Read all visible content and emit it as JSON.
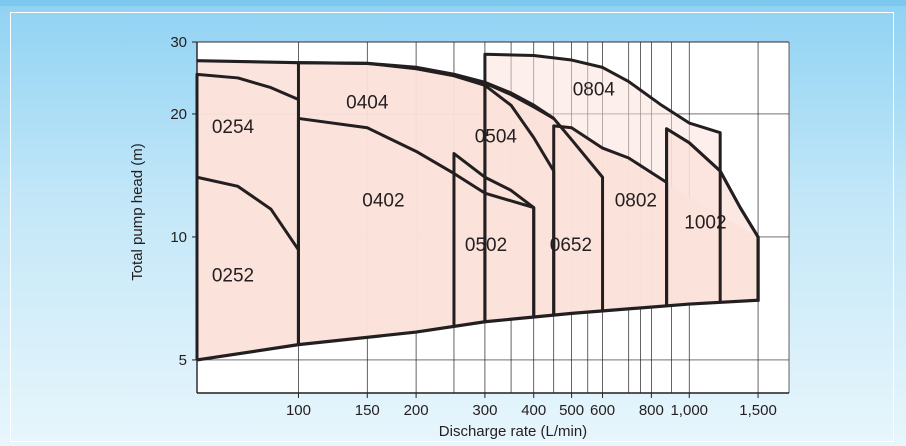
{
  "chart_data": {
    "type": "area",
    "title": "",
    "xlabel": "Discharge rate (L/min)",
    "ylabel": "Total pump head (m)",
    "x_scale": "log",
    "xlim": [
      55,
      1800
    ],
    "ylim": [
      4.15,
      30
    ],
    "grid": true,
    "x_ticks": [
      {
        "value": 100,
        "label": "100"
      },
      {
        "value": 150,
        "label": "150"
      },
      {
        "value": 200,
        "label": "200"
      },
      {
        "value": 300,
        "label": "300"
      },
      {
        "value": 400,
        "label": "400"
      },
      {
        "value": 500,
        "label": "500"
      },
      {
        "value": 600,
        "label": "600"
      },
      {
        "value": 800,
        "label": "800"
      },
      {
        "value": 1000,
        "label": "1,000"
      },
      {
        "value": 1500,
        "label": "1,500"
      }
    ],
    "x_minor": [
      250,
      350,
      450,
      550,
      700,
      750,
      900
    ],
    "y_ticks": [
      {
        "value": 5,
        "label": "5"
      },
      {
        "value": 10,
        "label": "10"
      },
      {
        "value": 20,
        "label": "20"
      },
      {
        "value": 30,
        "label": "30"
      }
    ],
    "y_grid_extra": [
      4.15
    ],
    "fill_color": "#fbe1da",
    "line_color": "#231f20",
    "envelope": {
      "upper": [
        [
          55,
          27
        ],
        [
          100,
          26.7
        ],
        [
          150,
          26.6
        ],
        [
          200,
          26
        ],
        [
          250,
          25
        ],
        [
          300,
          23.9
        ],
        [
          350,
          22.5
        ],
        [
          400,
          21
        ],
        [
          450,
          19.5
        ]
      ],
      "lower": [
        [
          55,
          5
        ],
        [
          100,
          5.45
        ],
        [
          200,
          5.85
        ],
        [
          300,
          6.2
        ],
        [
          500,
          6.5
        ],
        [
          1000,
          6.85
        ],
        [
          1500,
          7
        ]
      ]
    },
    "series": [
      {
        "name": "0252",
        "label_pos": [
          68,
          8
        ],
        "points": [
          [
            55,
            14
          ],
          [
            70,
            13.3
          ],
          [
            85,
            11.7
          ],
          [
            100,
            9.3
          ]
        ]
      },
      {
        "name": "0254",
        "label_pos": [
          68,
          18.5
        ],
        "points": [
          [
            55,
            25
          ],
          [
            70,
            24.5
          ],
          [
            85,
            23.2
          ],
          [
            100,
            21.7
          ]
        ]
      },
      {
        "name": "0402",
        "label_pos": [
          165,
          12.2
        ],
        "points": [
          [
            100,
            19.5
          ],
          [
            150,
            18.5
          ],
          [
            200,
            16.2
          ],
          [
            250,
            14.3
          ],
          [
            300,
            12.8
          ],
          [
            400,
            11.8
          ]
        ]
      },
      {
        "name": "0404",
        "label_pos": [
          150,
          21.2
        ],
        "points": [
          [
            100,
            26.7
          ],
          [
            150,
            26.6
          ],
          [
            200,
            25.8
          ],
          [
            250,
            24.8
          ],
          [
            300,
            23.5
          ],
          [
            350,
            21
          ],
          [
            400,
            17.5
          ],
          [
            450,
            14.5
          ]
        ]
      },
      {
        "name": "0502",
        "label_pos": [
          302,
          9.5
        ],
        "points": [
          [
            250,
            16
          ],
          [
            300,
            14
          ],
          [
            350,
            13
          ],
          [
            400,
            11.8
          ]
        ]
      },
      {
        "name": "0504",
        "label_pos": [
          320,
          17.5
        ],
        "points": [
          [
            300,
            23.8
          ],
          [
            350,
            22.3
          ],
          [
            400,
            20.8
          ],
          [
            450,
            19.5
          ],
          [
            500,
            17.3
          ],
          [
            600,
            14
          ]
        ]
      },
      {
        "name": "0652",
        "label_pos": [
          498,
          9.5
        ],
        "points": [
          [
            450,
            18.7
          ],
          [
            500,
            18.5
          ],
          [
            600,
            16.5
          ],
          [
            700,
            15.6
          ],
          [
            875,
            13.6
          ]
        ]
      },
      {
        "name": "0802",
        "label_pos": [
          730,
          12.2
        ],
        "points": [
          [
            875,
            18.4
          ],
          [
            1000,
            17
          ],
          [
            1200,
            14.5
          ],
          [
            1350,
            11.8
          ],
          [
            1500,
            10
          ]
        ]
      },
      {
        "name": "0804",
        "label_pos": [
          570,
          22.8
        ],
        "points": [
          [
            300,
            28
          ],
          [
            400,
            27.8
          ],
          [
            500,
            27.1
          ],
          [
            600,
            26
          ],
          [
            700,
            24
          ],
          [
            850,
            21
          ],
          [
            1000,
            19
          ],
          [
            1200,
            18
          ]
        ]
      },
      {
        "name": "1002",
        "label_pos": [
          1100,
          10.8
        ],
        "points": [
          [
            875,
            18.4
          ],
          [
            1000,
            17
          ],
          [
            1200,
            14.5
          ],
          [
            1350,
            11.8
          ],
          [
            1500,
            10
          ]
        ]
      }
    ]
  }
}
